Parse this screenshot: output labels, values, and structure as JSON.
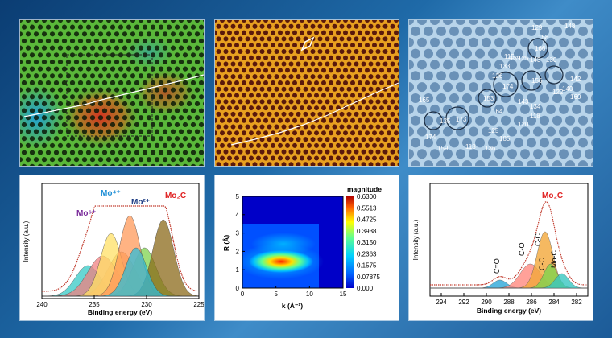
{
  "panels": {
    "p4": {
      "ylabel": "Intensity (a.u.)",
      "xlabel": "Binding energy (eV)",
      "xticks": [
        "240",
        "235",
        "230",
        "225"
      ],
      "tag": "Mo₂C",
      "labels": {
        "mo6": "Mo⁶⁺",
        "mo4": "Mo⁴⁺",
        "mo2": "Mo²⁺"
      }
    },
    "p5": {
      "ylabel": "R (Å)",
      "xlabel": "k (Å⁻¹)",
      "yticks": [
        "0",
        "1",
        "2",
        "3",
        "4",
        "5"
      ],
      "xticks": [
        "0",
        "5",
        "10",
        "15"
      ],
      "colorbar_title": "magnitude",
      "colorbar_ticks": [
        "0.6300",
        "0.5513",
        "0.4725",
        "0.3938",
        "0.3150",
        "0.2363",
        "0.1575",
        "0.07875",
        "0.000"
      ]
    },
    "p6": {
      "ylabel": "Intensity (a.u.)",
      "xlabel": "Binding energy (eV)",
      "xticks": [
        "294",
        "292",
        "290",
        "288",
        "286",
        "284",
        "282"
      ],
      "tag": "Mo₂C",
      "peak_labels": {
        "c_o_double": "C=O",
        "c_o": "C-O",
        "c_c": "C-C",
        "c_c_minus": "C-C",
        "mo_c": "Mo-C"
      }
    },
    "p3": {
      "ring_labels": [
        "129",
        "148",
        "166",
        "158",
        "143",
        "139",
        "115",
        "125",
        "130",
        "133",
        "156",
        "174",
        "140",
        "142",
        "122",
        "160",
        "126",
        "153",
        "164",
        "143",
        "134",
        "118",
        "165",
        "135",
        "173",
        "125",
        "120",
        "136",
        "174",
        "159",
        "118",
        "185"
      ]
    }
  },
  "chart_data": [
    {
      "type": "line",
      "title": "",
      "xlabel": "Binding energy (eV)",
      "ylabel": "Intensity (a.u.)",
      "xlim": [
        240,
        225
      ],
      "series": [
        {
          "name": "Mo⁶⁺",
          "peaks_eV": [
            235.6,
            232.4
          ]
        },
        {
          "name": "Mo⁴⁺",
          "peaks_eV": [
            233.4,
            230.2
          ]
        },
        {
          "name": "Mo²⁺",
          "peaks_eV": [
            231.6,
            228.4
          ]
        }
      ]
    },
    {
      "type": "heatmap",
      "xlabel": "k (Å⁻¹)",
      "ylabel": "R (Å)",
      "xlim": [
        0,
        15
      ],
      "ylim": [
        0,
        5
      ],
      "zlim": [
        0.0,
        0.63
      ],
      "max_at": {
        "k": 5.5,
        "R": 1.5
      }
    },
    {
      "type": "line",
      "xlabel": "Binding energy (eV)",
      "ylabel": "Intensity (a.u.)",
      "xlim": [
        295,
        281
      ],
      "series": [
        {
          "name": "C=O",
          "peak_eV": 288.8
        },
        {
          "name": "C-O",
          "peak_eV": 286.1
        },
        {
          "name": "C-C",
          "peak_eV": 284.8
        },
        {
          "name": "C-C",
          "peak_eV": 284.3
        },
        {
          "name": "Mo-C",
          "peak_eV": 283.3
        }
      ]
    }
  ]
}
